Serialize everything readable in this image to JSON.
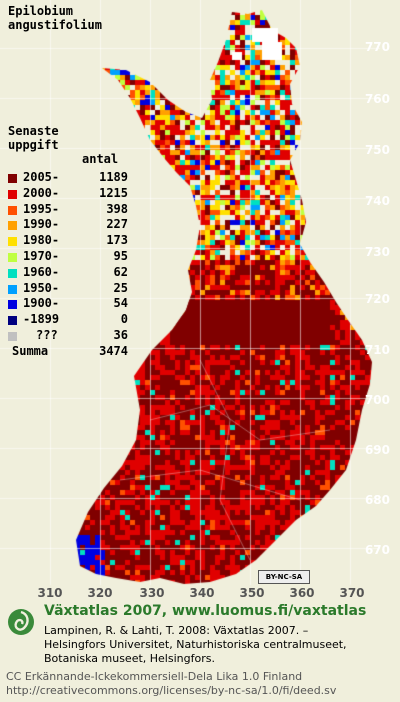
{
  "species": [
    "Epilobium",
    "angustifolium"
  ],
  "legend_title": [
    "Senaste",
    "uppgift"
  ],
  "count_header": "antal",
  "legend": [
    {
      "label": "2005-",
      "count": "1189",
      "color": "#800000"
    },
    {
      "label": "2000-",
      "count": "1215",
      "color": "#e00000"
    },
    {
      "label": "1995-",
      "count": "398",
      "color": "#ff5000"
    },
    {
      "label": "1990-",
      "count": "227",
      "color": "#ffa000"
    },
    {
      "label": "1980-",
      "count": "173",
      "color": "#ffe000"
    },
    {
      "label": "1970-",
      "count": "95",
      "color": "#c0ff40"
    },
    {
      "label": "1960-",
      "count": "62",
      "color": "#00e0c0"
    },
    {
      "label": "1950-",
      "count": "25",
      "color": "#00a0ff"
    },
    {
      "label": "1900-",
      "count": "54",
      "color": "#0000e0"
    },
    {
      "label": "-1899",
      "count": "0",
      "color": "#000080"
    },
    {
      "label": "???",
      "count": "36",
      "color": "#c0c0c0"
    }
  ],
  "summa": {
    "label": "Summa",
    "count": "3474"
  },
  "y_axis": [
    "770",
    "760",
    "750",
    "740",
    "730",
    "720",
    "710",
    "700",
    "690",
    "680",
    "670"
  ],
  "x_axis": [
    "310",
    "320",
    "330",
    "340",
    "350",
    "360",
    "370"
  ],
  "cc_badge": "BY-NC-SA",
  "footer": {
    "title": "Växtatlas 2007, www.luomus.fi/vaxtatlas",
    "cite1": "Lampinen, R. & Lahti, T. 2008: Växtatlas 2007. –",
    "cite2": "Helsingfors Universitet, Naturhistoriska centralmuseet,",
    "cite3": "Botaniska museet, Helsingfors."
  },
  "license": {
    "line1": "CC Erkännande-Ickekommersiell-Dela Lika 1.0 Finland",
    "line2": "http://creativecommons.org/licenses/by-nc-sa/1.0/fi/deed.sv"
  },
  "colors": {
    "background": "#f0efdc",
    "accent": "#2b7a2b"
  }
}
